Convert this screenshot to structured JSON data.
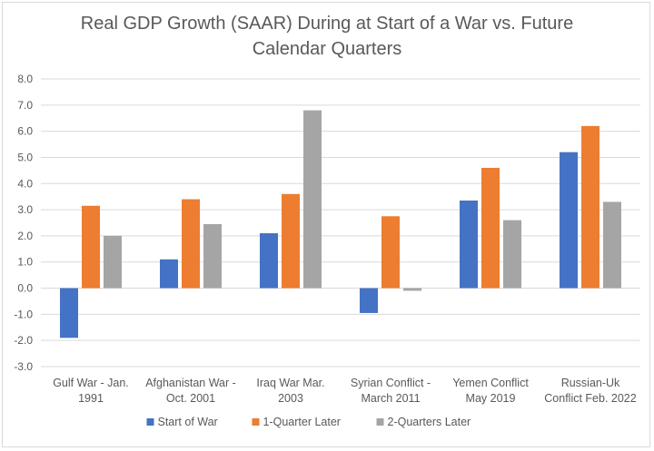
{
  "chart_data": {
    "type": "bar",
    "title_lines": [
      "Real GDP Growth (SAAR) During at Start of a War vs. Future",
      "Calendar Quarters"
    ],
    "categories": [
      [
        "Gulf War - Jan.",
        "1991"
      ],
      [
        "Afghanistan War -",
        "Oct. 2001"
      ],
      [
        "Iraq War Mar.",
        "2003"
      ],
      [
        "Syrian Conflict -",
        "March 2011"
      ],
      [
        "Yemen Conflict",
        "May 2019"
      ],
      [
        "Russian-Uk",
        "Conflict Feb. 2022"
      ]
    ],
    "series": [
      {
        "name": "Start of War",
        "color": "#4472c4",
        "values": [
          -1.9,
          1.1,
          2.1,
          -0.95,
          3.35,
          5.2
        ]
      },
      {
        "name": "1-Quarter Later",
        "color": "#ed7d31",
        "values": [
          3.15,
          3.4,
          3.6,
          2.75,
          4.6,
          6.2
        ]
      },
      {
        "name": "2-Quarters Later",
        "color": "#a5a5a5",
        "values": [
          2.0,
          2.45,
          6.8,
          -0.1,
          2.6,
          3.3
        ]
      }
    ],
    "ylim": [
      -3.0,
      8.0
    ],
    "ytick_step": 1.0,
    "grid": true,
    "legend": "bottom"
  }
}
